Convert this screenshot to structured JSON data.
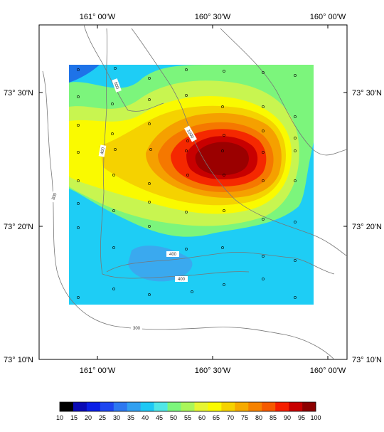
{
  "map": {
    "lon_labels": [
      "161° 00'W",
      "160° 30'W",
      "160° 00'W"
    ],
    "lat_labels": [
      "73° 30'N",
      "73° 20'N",
      "73° 10'N"
    ],
    "bathymetry_labels": [
      "500",
      "1000",
      "400",
      "300",
      "400",
      "400",
      "300"
    ],
    "field_colors": {
      "background": "#1ecdf5",
      "low": "#3aa9ef",
      "low2": "#1e73e8",
      "green": "#7cf57c",
      "yellow_green": "#c8f550",
      "yellow": "#fafa00",
      "gold": "#f5d200",
      "orange": "#f5a000",
      "orange_red": "#f57800",
      "red": "#f52800",
      "dark_red": "#c80000",
      "maroon": "#9b0000"
    }
  },
  "colorbar": {
    "levels": [
      "10",
      "15",
      "20",
      "25",
      "30",
      "35",
      "40",
      "45",
      "50",
      "55",
      "60",
      "65",
      "70",
      "75",
      "80",
      "85",
      "90",
      "95",
      "100"
    ],
    "colors": [
      "#000000",
      "#0a0ab4",
      "#0a1ee6",
      "#1e46f0",
      "#2d78f0",
      "#32a0f0",
      "#1ec8f5",
      "#50e6e6",
      "#7cf57c",
      "#aaf55a",
      "#e6f532",
      "#fafa00",
      "#f5d200",
      "#f5aa00",
      "#f58200",
      "#f55a00",
      "#f51e00",
      "#c80000",
      "#8c0000"
    ]
  }
}
